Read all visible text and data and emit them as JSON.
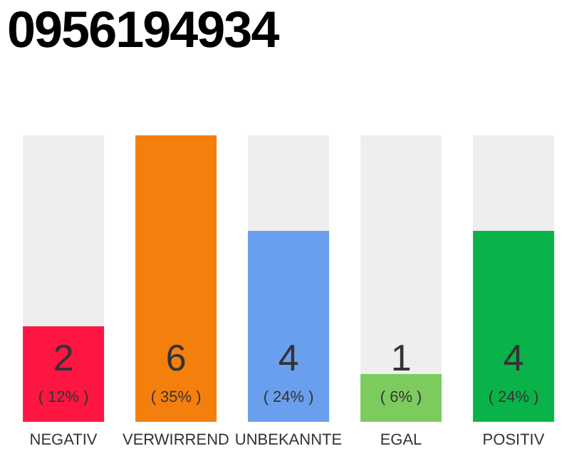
{
  "chart_data": {
    "type": "bar",
    "title": "0956194934",
    "categories": [
      "NEGATIV",
      "VERWIRREND",
      "UNBEKANNTE",
      "EGAL",
      "POSITIV"
    ],
    "values": [
      2,
      6,
      4,
      1,
      4
    ],
    "colors": [
      "#fe1541",
      "#f47f0c",
      "#6a9fed",
      "#7dcb5e",
      "#0ab34a"
    ],
    "value_labels": [
      "2\n( 12% )",
      "6\n( 35% )",
      "4\n( 24% )",
      "1\n( 6% )",
      "4\n( 24% )"
    ],
    "tick_labels": "x",
    "grid": false,
    "legend": false
  }
}
